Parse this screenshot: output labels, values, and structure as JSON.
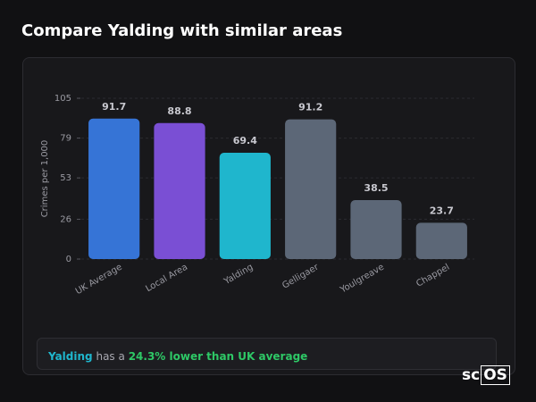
{
  "chart_data": {
    "type": "bar",
    "title": "Compare Yalding with similar areas",
    "y_label": "Crimes per 1,000",
    "categories": [
      "UK Average",
      "Local Area",
      "Yalding",
      "Gelligaer",
      "Youlgreave",
      "Chappel"
    ],
    "values": [
      91.7,
      88.8,
      69.4,
      91.2,
      38.5,
      23.7
    ],
    "colors": [
      "#3674d6",
      "#7a4fd4",
      "#1fb6cd",
      "#5c6777",
      "#5c6777",
      "#5c6777"
    ],
    "ylim": [
      0,
      105
    ],
    "yticks": [
      0,
      26,
      53,
      79,
      105
    ],
    "grid": true
  },
  "summary": {
    "area": "Yalding",
    "middle": "has a",
    "comparison": "24.3% lower than UK average"
  },
  "logo": {
    "left": "sc",
    "right": "OS"
  }
}
